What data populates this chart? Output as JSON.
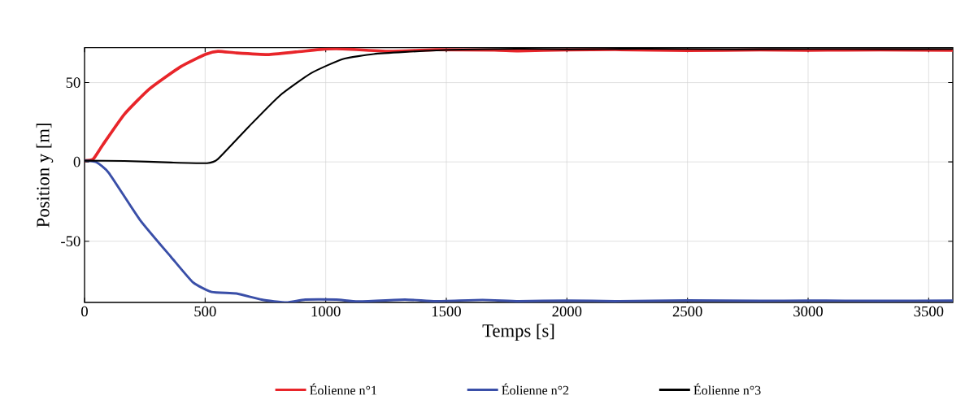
{
  "chart_data": {
    "type": "line",
    "xlabel": "Temps [s]",
    "ylabel": "Position y [m]",
    "xlim": [
      0,
      3600
    ],
    "ylim": [
      -88.6,
      72
    ],
    "xticks": [
      0,
      500,
      1000,
      1500,
      2000,
      2500,
      3000,
      3500
    ],
    "yticks": [
      -50,
      0,
      50
    ],
    "grid": true,
    "legend": "bottom",
    "line_style": "solid",
    "marker": "none",
    "series": [
      {
        "name": "Éolienne n°1",
        "color": "#e8252a",
        "x": [
          0,
          36,
          75,
          165,
          269,
          398,
          500,
          553,
          630,
          760,
          876,
          1005,
          1070,
          1264,
          1457,
          1700,
          1800,
          2000,
          2200,
          2500,
          2800,
          3000,
          3300,
          3600
        ],
        "values": [
          0.8,
          1.8,
          10.6,
          30,
          46,
          60,
          67.7,
          69.7,
          68.7,
          67.7,
          69.3,
          71.2,
          71.3,
          69.7,
          70.7,
          70.5,
          70.0,
          70.6,
          70.8,
          70.2,
          70.6,
          70.4,
          70.6,
          70.3
        ]
      },
      {
        "name": "Éolienne n°2",
        "color": "#3a4fa8",
        "x": [
          0,
          49,
          101,
          230,
          359,
          450,
          527,
          630,
          734,
          837,
          915,
          1044,
          1134,
          1328,
          1457,
          1650,
          1800,
          2000,
          2200,
          2500,
          2800,
          3000,
          3300,
          3600
        ],
        "values": [
          0.8,
          -0.2,
          -7,
          -36.6,
          -60,
          -76,
          -82,
          -83,
          -86.8,
          -88.6,
          -86.8,
          -86.8,
          -88,
          -86.8,
          -87.8,
          -87,
          -87.8,
          -87.4,
          -87.8,
          -87.3,
          -87.6,
          -87.4,
          -87.6,
          -87.4
        ]
      },
      {
        "name": "Éolienne n°3",
        "color": "#000000",
        "x": [
          0,
          165,
          359,
          508,
          553,
          682,
          811,
          940,
          1070,
          1199,
          1328,
          1522,
          1800,
          2000,
          2300,
          2700,
          3000,
          3300,
          3600
        ],
        "values": [
          0.8,
          0.6,
          -0.4,
          -0.8,
          1.8,
          22.4,
          42,
          56,
          64.8,
          68,
          69.3,
          70.7,
          71.3,
          71.0,
          71.3,
          71.0,
          71.2,
          71.1,
          71.2
        ]
      }
    ]
  }
}
